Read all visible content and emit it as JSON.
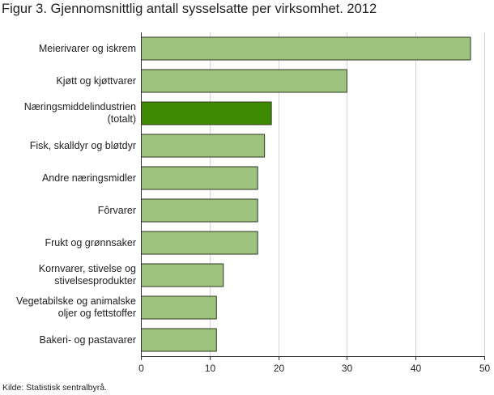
{
  "title": "Figur 3. Gjennomsnittlig antall sysselsatte per virksomhet. 2012",
  "source": "Kilde: Statistisk sentralbyrå.",
  "colors": {
    "bar": "#9dc37e",
    "bar_highlight": "#3e8a01",
    "bar_stroke": "#2e3b22",
    "grid": "#d4d4d4",
    "axis": "#333333"
  },
  "chart_data": {
    "type": "bar",
    "orientation": "horizontal",
    "categories": [
      "Meierivarer og iskrem",
      "Kjøtt og kjøttvarer",
      "Næringsmiddelindustrien\n(totalt)",
      "Fisk, skalldyr og bløtdyr",
      "Andre næringsmidler",
      "Fôrvarer",
      "Frukt og grønnsaker",
      "Kornvarer, stivelse og\nstivelsesprodukter",
      "Vegetabilske og animalske\noljer og fettstoffer",
      "Bakeri- og pastavarer"
    ],
    "values": [
      48,
      30,
      19,
      18,
      17,
      17,
      17,
      12,
      11,
      11
    ],
    "highlight": [
      false,
      false,
      true,
      false,
      false,
      false,
      false,
      false,
      false,
      false
    ],
    "xlim": [
      0,
      50
    ],
    "xticks": [
      0,
      10,
      20,
      30,
      40,
      50
    ],
    "grid": true,
    "xlabel": "",
    "ylabel": ""
  }
}
